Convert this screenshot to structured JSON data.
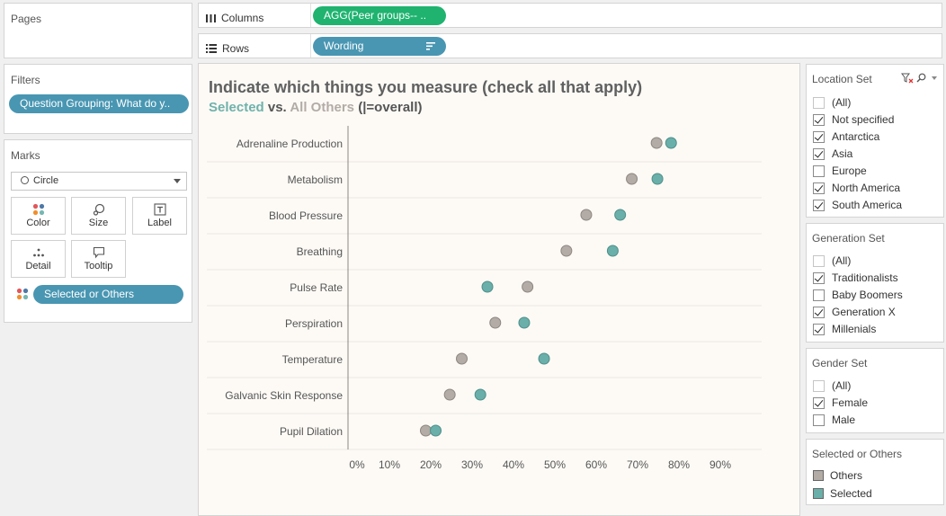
{
  "panels": {
    "pages": {
      "title": "Pages"
    },
    "filters": {
      "title": "Filters",
      "pill": "Question Grouping: What do y.."
    },
    "marks": {
      "title": "Marks",
      "type": "Circle",
      "buttons": {
        "color": "Color",
        "size": "Size",
        "label": "Label",
        "detail": "Detail",
        "tooltip": "Tooltip"
      },
      "color_pill": "Selected or Others"
    }
  },
  "shelves": {
    "columns": {
      "label": "Columns",
      "pill": "AGG(Peer groups-- .."
    },
    "rows": {
      "label": "Rows",
      "pill": "Wording"
    }
  },
  "viz": {
    "title": "Indicate  which things you measure (check all that apply)",
    "subtitle": {
      "selected": "Selected",
      "vs": " vs. ",
      "others": "All Others",
      "rest": " (|=overall)"
    }
  },
  "chart_data": {
    "type": "scatter",
    "categories": [
      "Adrenaline Production",
      "Metabolism",
      "Blood Pressure",
      "Breathing",
      "Pulse Rate",
      "Perspiration",
      "Temperature",
      "Galvanic Skin Response",
      "Pupil Dilation"
    ],
    "x_ticks": [
      "0%",
      "10%",
      "20%",
      "30%",
      "40%",
      "50%",
      "60%",
      "70%",
      "80%",
      "90%"
    ],
    "xlim": [
      0,
      0.95
    ],
    "series": [
      {
        "name": "Others",
        "color": "#b3aba5",
        "values": [
          0.746,
          0.686,
          0.576,
          0.528,
          0.434,
          0.356,
          0.275,
          0.246,
          0.188
        ]
      },
      {
        "name": "Selected",
        "color": "#6aafa9",
        "values": [
          0.781,
          0.748,
          0.658,
          0.64,
          0.337,
          0.426,
          0.474,
          0.32,
          0.212
        ]
      }
    ]
  },
  "filters_right": {
    "location": {
      "title": "Location Set",
      "items": [
        {
          "label": "(All)",
          "checked": false,
          "all": true
        },
        {
          "label": "Not specified",
          "checked": true
        },
        {
          "label": "Antarctica",
          "checked": true
        },
        {
          "label": "Asia",
          "checked": true
        },
        {
          "label": "Europe",
          "checked": false
        },
        {
          "label": "North America",
          "checked": true
        },
        {
          "label": "South America",
          "checked": true
        }
      ]
    },
    "generation": {
      "title": "Generation Set",
      "items": [
        {
          "label": "(All)",
          "checked": false,
          "all": true
        },
        {
          "label": "Traditionalists",
          "checked": true
        },
        {
          "label": "Baby Boomers",
          "checked": false
        },
        {
          "label": "Generation X",
          "checked": true
        },
        {
          "label": "Millenials",
          "checked": true
        }
      ]
    },
    "gender": {
      "title": "Gender Set",
      "items": [
        {
          "label": "(All)",
          "checked": false,
          "all": true
        },
        {
          "label": "Female",
          "checked": true
        },
        {
          "label": "Male",
          "checked": false
        }
      ]
    },
    "legend": {
      "title": "Selected or Others",
      "items": [
        {
          "label": "Others",
          "color": "#b3aba5"
        },
        {
          "label": "Selected",
          "color": "#6aafa9"
        }
      ]
    }
  }
}
